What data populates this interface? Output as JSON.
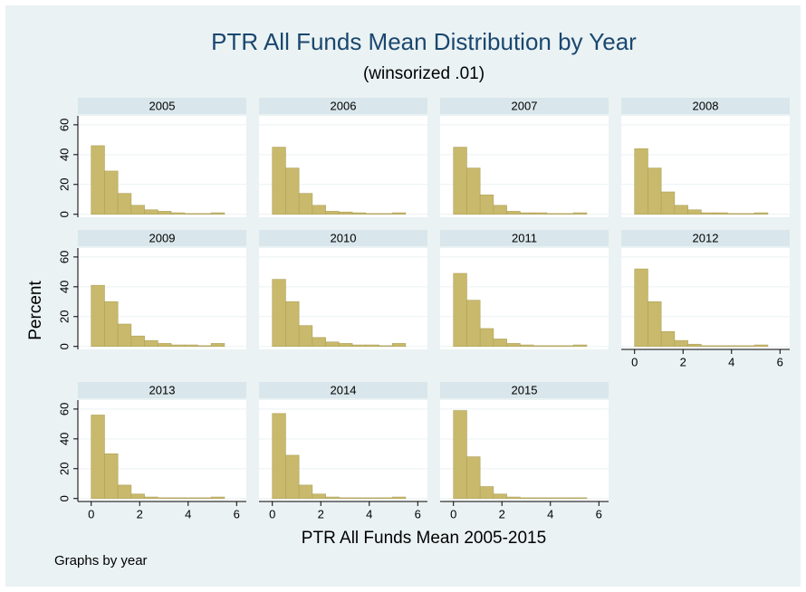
{
  "figure": {
    "title": "PTR All Funds Mean Distribution by Year",
    "subtitle": "(winsorized .01)",
    "x_label": "PTR All Funds Mean 2005-2015",
    "y_label": "Percent",
    "note": "Graphs by year"
  },
  "chart_data": [
    {
      "type": "histogram",
      "title": "2005",
      "color": "#c8b96c",
      "bins": [
        0,
        0.55,
        1.1,
        1.65,
        2.2,
        2.75,
        3.3,
        3.85,
        4.4,
        4.95,
        5.5,
        6.05
      ],
      "values": [
        46,
        29,
        14,
        6,
        3,
        2,
        1,
        0.5,
        0.5,
        1,
        0
      ],
      "xlim": [
        -0.55,
        6.4
      ],
      "ylim": [
        -2,
        66
      ],
      "yticks": [
        0,
        20,
        40,
        60
      ],
      "ytick_labels": true,
      "grid": true
    },
    {
      "type": "histogram",
      "title": "2006",
      "color": "#c8b96c",
      "bins": [
        0,
        0.55,
        1.1,
        1.65,
        2.2,
        2.75,
        3.3,
        3.85,
        4.4,
        4.95,
        5.5,
        6.05
      ],
      "values": [
        45,
        31,
        14,
        6,
        2,
        1.5,
        1,
        0.5,
        0.5,
        1,
        0
      ],
      "xlim": [
        -0.55,
        6.4
      ],
      "ylim": [
        -2,
        66
      ],
      "yticks": [
        0,
        20,
        40,
        60
      ],
      "ytick_labels": false,
      "grid": true
    },
    {
      "type": "histogram",
      "title": "2007",
      "color": "#c8b96c",
      "bins": [
        0,
        0.55,
        1.1,
        1.65,
        2.2,
        2.75,
        3.3,
        3.85,
        4.4,
        4.95,
        5.5,
        6.05
      ],
      "values": [
        45,
        31,
        13,
        6,
        2,
        1,
        1,
        0.5,
        0.5,
        1,
        0
      ],
      "xlim": [
        -0.55,
        6.4
      ],
      "ylim": [
        -2,
        66
      ],
      "yticks": [
        0,
        20,
        40,
        60
      ],
      "ytick_labels": false,
      "grid": true
    },
    {
      "type": "histogram",
      "title": "2008",
      "color": "#c8b96c",
      "bins": [
        0,
        0.55,
        1.1,
        1.65,
        2.2,
        2.75,
        3.3,
        3.85,
        4.4,
        4.95,
        5.5,
        6.05
      ],
      "values": [
        44,
        31,
        15,
        6,
        3,
        1,
        1,
        0.5,
        0.5,
        1,
        0
      ],
      "xlim": [
        -0.55,
        6.4
      ],
      "ylim": [
        -2,
        66
      ],
      "yticks": [
        0,
        20,
        40,
        60
      ],
      "ytick_labels": false,
      "grid": true
    },
    {
      "type": "histogram",
      "title": "2009",
      "color": "#c8b96c",
      "bins": [
        0,
        0.55,
        1.1,
        1.65,
        2.2,
        2.75,
        3.3,
        3.85,
        4.4,
        4.95,
        5.5,
        6.05
      ],
      "values": [
        41,
        30,
        15,
        7,
        4,
        2,
        1,
        1,
        0.5,
        2,
        0
      ],
      "xlim": [
        -0.55,
        6.4
      ],
      "ylim": [
        -2,
        66
      ],
      "yticks": [
        0,
        20,
        40,
        60
      ],
      "ytick_labels": true,
      "grid": true
    },
    {
      "type": "histogram",
      "title": "2010",
      "color": "#c8b96c",
      "bins": [
        0,
        0.55,
        1.1,
        1.65,
        2.2,
        2.75,
        3.3,
        3.85,
        4.4,
        4.95,
        5.5,
        6.05
      ],
      "values": [
        45,
        30,
        14,
        6,
        3,
        2,
        1,
        1,
        0.5,
        2,
        0
      ],
      "xlim": [
        -0.55,
        6.4
      ],
      "ylim": [
        -2,
        66
      ],
      "yticks": [
        0,
        20,
        40,
        60
      ],
      "ytick_labels": false,
      "grid": true
    },
    {
      "type": "histogram",
      "title": "2011",
      "color": "#c8b96c",
      "bins": [
        0,
        0.55,
        1.1,
        1.65,
        2.2,
        2.75,
        3.3,
        3.85,
        4.4,
        4.95,
        5.5,
        6.05
      ],
      "values": [
        49,
        31,
        12,
        5,
        2,
        1,
        0.5,
        0.5,
        0.5,
        1,
        0
      ],
      "xlim": [
        -0.55,
        6.4
      ],
      "ylim": [
        -2,
        66
      ],
      "yticks": [
        0,
        20,
        40,
        60
      ],
      "ytick_labels": false,
      "grid": true
    },
    {
      "type": "histogram",
      "title": "2012",
      "color": "#c8b96c",
      "bins": [
        0,
        0.55,
        1.1,
        1.65,
        2.2,
        2.75,
        3.3,
        3.85,
        4.4,
        4.95,
        5.5,
        6.05
      ],
      "values": [
        52,
        30,
        10,
        4,
        1.5,
        0.5,
        0.5,
        0.5,
        0.5,
        1,
        0
      ],
      "xlim": [
        -0.55,
        6.4
      ],
      "ylim": [
        -2,
        66
      ],
      "yticks": [
        0,
        20,
        40,
        60
      ],
      "ytick_labels": false,
      "xticks": [
        0,
        2,
        4,
        6
      ],
      "grid": true
    },
    {
      "type": "histogram",
      "title": "2013",
      "color": "#c8b96c",
      "bins": [
        0,
        0.55,
        1.1,
        1.65,
        2.2,
        2.75,
        3.3,
        3.85,
        4.4,
        4.95,
        5.5,
        6.05
      ],
      "values": [
        56,
        30,
        9,
        3,
        1,
        0.5,
        0.5,
        0.5,
        0.5,
        1,
        0
      ],
      "xlim": [
        -0.55,
        6.4
      ],
      "ylim": [
        -2,
        66
      ],
      "yticks": [
        0,
        20,
        40,
        60
      ],
      "ytick_labels": true,
      "xticks": [
        0,
        2,
        4,
        6
      ],
      "grid": true
    },
    {
      "type": "histogram",
      "title": "2014",
      "color": "#c8b96c",
      "bins": [
        0,
        0.55,
        1.1,
        1.65,
        2.2,
        2.75,
        3.3,
        3.85,
        4.4,
        4.95,
        5.5,
        6.05
      ],
      "values": [
        57,
        29,
        9,
        3,
        1,
        0.5,
        0.5,
        0.5,
        0.5,
        1,
        0
      ],
      "xlim": [
        -0.55,
        6.4
      ],
      "ylim": [
        -2,
        66
      ],
      "yticks": [
        0,
        20,
        40,
        60
      ],
      "ytick_labels": false,
      "xticks": [
        0,
        2,
        4,
        6
      ],
      "grid": true
    },
    {
      "type": "histogram",
      "title": "2015",
      "color": "#c8b96c",
      "bins": [
        0,
        0.55,
        1.1,
        1.65,
        2.2,
        2.75,
        3.3,
        3.85,
        4.4,
        4.95,
        5.5,
        6.05
      ],
      "values": [
        59,
        28,
        8,
        3,
        1,
        0.5,
        0.5,
        0.5,
        0.5,
        0.5,
        0
      ],
      "xlim": [
        -0.55,
        6.4
      ],
      "ylim": [
        -2,
        66
      ],
      "yticks": [
        0,
        20,
        40,
        60
      ],
      "ytick_labels": false,
      "xticks": [
        0,
        2,
        4,
        6
      ],
      "grid": true
    }
  ]
}
